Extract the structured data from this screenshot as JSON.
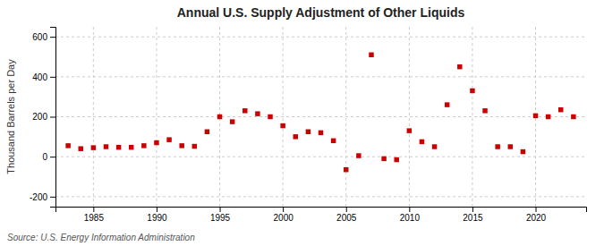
{
  "chart_data": {
    "type": "scatter",
    "title": "Annual U.S. Supply Adjustment of Other Liquids",
    "ylabel": "Thousand Barrels per Day",
    "source": "Source: U.S. Energy Information Administration",
    "x": [
      1983,
      1984,
      1985,
      1986,
      1987,
      1988,
      1989,
      1990,
      1991,
      1992,
      1993,
      1994,
      1995,
      1996,
      1997,
      1998,
      1999,
      2000,
      2001,
      2002,
      2003,
      2004,
      2005,
      2006,
      2007,
      2008,
      2009,
      2010,
      2011,
      2012,
      2013,
      2014,
      2015,
      2016,
      2017,
      2018,
      2019,
      2020,
      2021,
      2022,
      2023
    ],
    "values": [
      55,
      40,
      45,
      50,
      47,
      47,
      55,
      70,
      85,
      55,
      52,
      125,
      200,
      175,
      230,
      215,
      200,
      155,
      100,
      125,
      120,
      80,
      -65,
      5,
      510,
      -10,
      -15,
      130,
      75,
      50,
      260,
      450,
      330,
      230,
      50,
      50,
      25,
      205,
      200,
      235,
      200
    ],
    "color": "#cc0000",
    "marker": "square",
    "xlim": [
      1982,
      2024
    ],
    "ylim": [
      -250,
      650
    ],
    "xticks": [
      1985,
      1990,
      1995,
      2000,
      2005,
      2010,
      2015,
      2020
    ],
    "yticks": [
      -200,
      0,
      200,
      400,
      600
    ],
    "grid": true
  }
}
